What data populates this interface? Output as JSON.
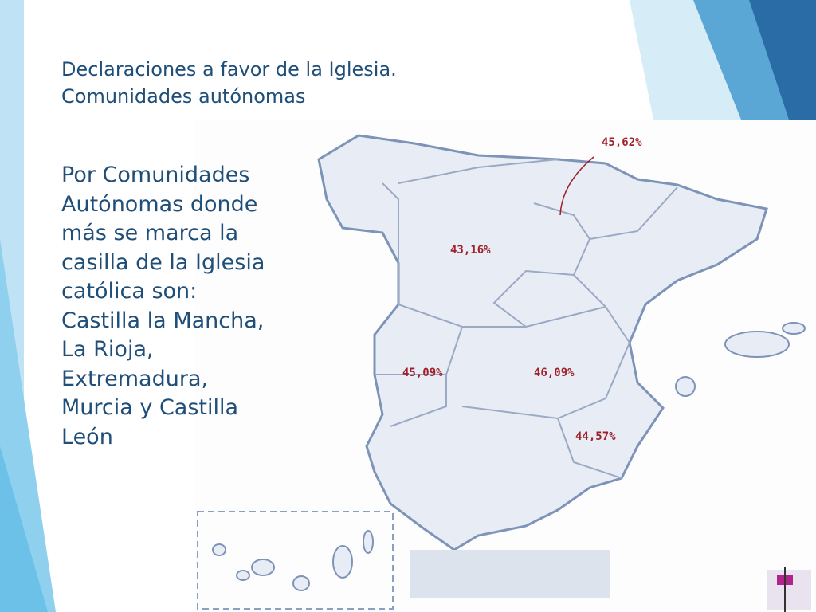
{
  "header": {
    "title": [
      "Declaraciones a favor de la Iglesia.",
      "Comunidades autónomas"
    ]
  },
  "body": {
    "lines": [
      "Por Comunidades",
      "Autónomas donde",
      "más se marca la",
      "casilla de la Iglesia",
      "católica son:",
      "Castilla la Mancha,",
      "La Rioja,",
      "Extremadura,",
      "Murcia y Castilla",
      "León"
    ]
  },
  "map": {
    "labels": [
      "45,62%",
      "43,16%",
      "45,09%",
      "46,09%",
      "44,57%"
    ]
  }
}
